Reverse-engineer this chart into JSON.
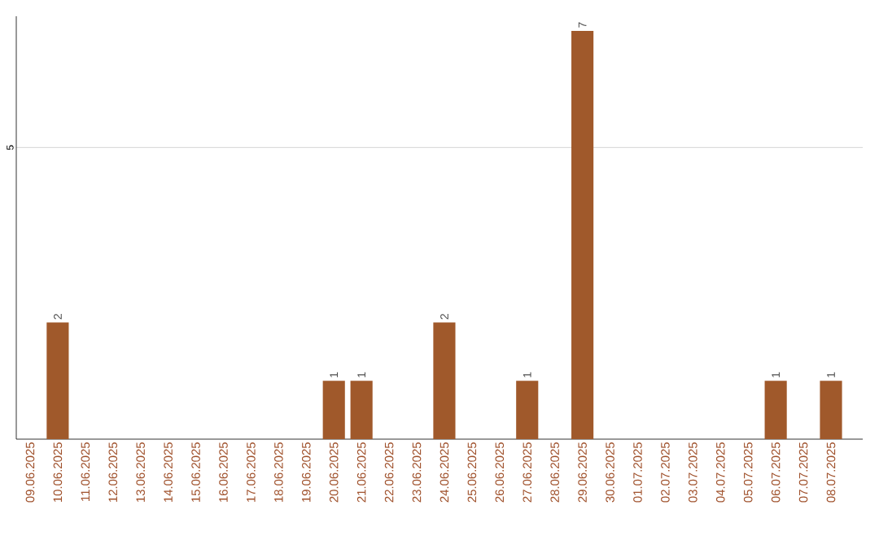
{
  "chart_data": {
    "type": "bar",
    "categories": [
      "09.06.2025",
      "10.06.2025",
      "11.06.2025",
      "12.06.2025",
      "13.06.2025",
      "14.06.2025",
      "15.06.2025",
      "16.06.2025",
      "17.06.2025",
      "18.06.2025",
      "19.06.2025",
      "20.06.2025",
      "21.06.2025",
      "22.06.2025",
      "23.06.2025",
      "24.06.2025",
      "25.06.2025",
      "26.06.2025",
      "27.06.2025",
      "28.06.2025",
      "29.06.2025",
      "30.06.2025",
      "01.07.2025",
      "02.07.2025",
      "03.07.2025",
      "04.07.2025",
      "05.07.2025",
      "06.07.2025",
      "07.07.2025",
      "08.07.2025"
    ],
    "values": [
      null,
      2,
      null,
      null,
      null,
      null,
      null,
      null,
      null,
      null,
      null,
      1,
      1,
      null,
      null,
      2,
      null,
      null,
      1,
      null,
      7,
      null,
      null,
      null,
      null,
      null,
      null,
      1,
      null,
      1
    ],
    "color": "#a0592b",
    "ylim": [
      0,
      7.25
    ],
    "yticks": [
      5
    ],
    "grid": "y",
    "data_labels": true
  }
}
